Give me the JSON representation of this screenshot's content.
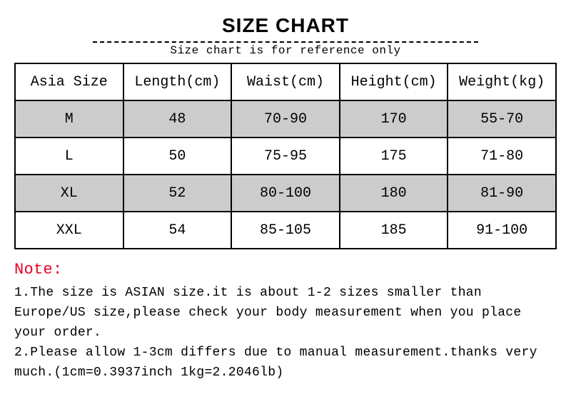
{
  "title": "SIZE CHART",
  "subtitle": "Size chart is for reference only",
  "table": {
    "columns": [
      "Asia Size",
      "Length(cm)",
      "Waist(cm)",
      "Height(cm)",
      "Weight(kg)"
    ],
    "rows": [
      {
        "shaded": true,
        "cells": [
          "M",
          "48",
          "70-90",
          "170",
          "55-70"
        ]
      },
      {
        "shaded": false,
        "cells": [
          "L",
          "50",
          "75-95",
          "175",
          "71-80"
        ]
      },
      {
        "shaded": true,
        "cells": [
          "XL",
          "52",
          "80-100",
          "180",
          "81-90"
        ]
      },
      {
        "shaded": false,
        "cells": [
          "XXL",
          "54",
          "85-105",
          "185",
          "91-100"
        ]
      }
    ],
    "cell_fontsize": 20,
    "header_bg": "#ffffff",
    "shaded_bg": "#cccccc",
    "plain_bg": "#ffffff",
    "border_color": "#000000",
    "border_width": 2
  },
  "note": {
    "heading": "Note:",
    "heading_color": "#e60023",
    "line1": "1.The size is ASIAN size.it is about 1-2 sizes smaller than Europe/US size,please check your body measurement when you place your order.",
    "line2": "2.Please allow 1-3cm differs due to manual measurement.thanks very much.(1cm=0.3937inch 1kg=2.2046lb)"
  },
  "style": {
    "title_fontsize": 28,
    "title_color": "#000000",
    "subtitle_fontsize": 16,
    "note_fontsize": 18,
    "font_mono": "Courier New",
    "font_sans": "Arial",
    "background_color": "#ffffff",
    "dash_color": "#000000"
  }
}
